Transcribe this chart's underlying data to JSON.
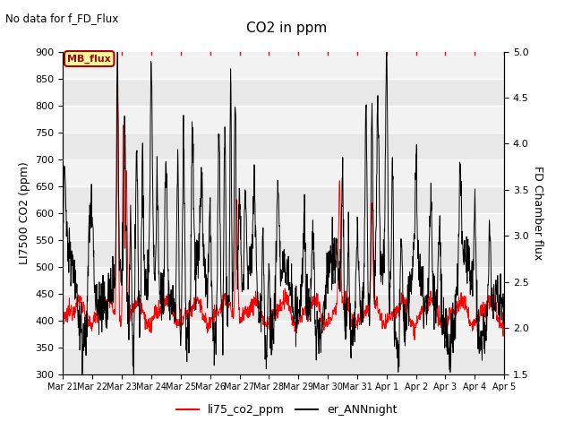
{
  "title": "CO2 in ppm",
  "top_left_text": "No data for f_FD_Flux",
  "ylabel_left": "LI7500 CO2 (ppm)",
  "ylabel_right": "FD Chamber flux",
  "ylim_left": [
    300,
    900
  ],
  "ylim_right": [
    1.5,
    5.0
  ],
  "yticks_left": [
    300,
    350,
    400,
    450,
    500,
    550,
    600,
    650,
    700,
    750,
    800,
    850,
    900
  ],
  "yticks_right": [
    1.5,
    2.0,
    2.5,
    3.0,
    3.5,
    4.0,
    4.5,
    5.0
  ],
  "x_tick_labels": [
    "Mar 21",
    "Mar 22",
    "Mar 23",
    "Mar 24",
    "Mar 25",
    "Mar 26",
    "Mar 27",
    "Mar 28",
    "Mar 29",
    "Mar 30",
    "Mar 31",
    "Apr 1",
    "Apr 2",
    "Apr 3",
    "Apr 4",
    "Apr 5"
  ],
  "legend_entries": [
    "li75_co2_ppm",
    "er_ANNnight"
  ],
  "mb_flux_box_color": "#ffff99",
  "mb_flux_text_color": "#aa0000",
  "mb_flux_border_color": "#aa0000",
  "band_colors": [
    "#e8e8e8",
    "#f2f2f2"
  ],
  "line_color_red": "red",
  "line_color_black": "black",
  "n_days": 15,
  "red_base": 420,
  "red_amplitude": 25
}
